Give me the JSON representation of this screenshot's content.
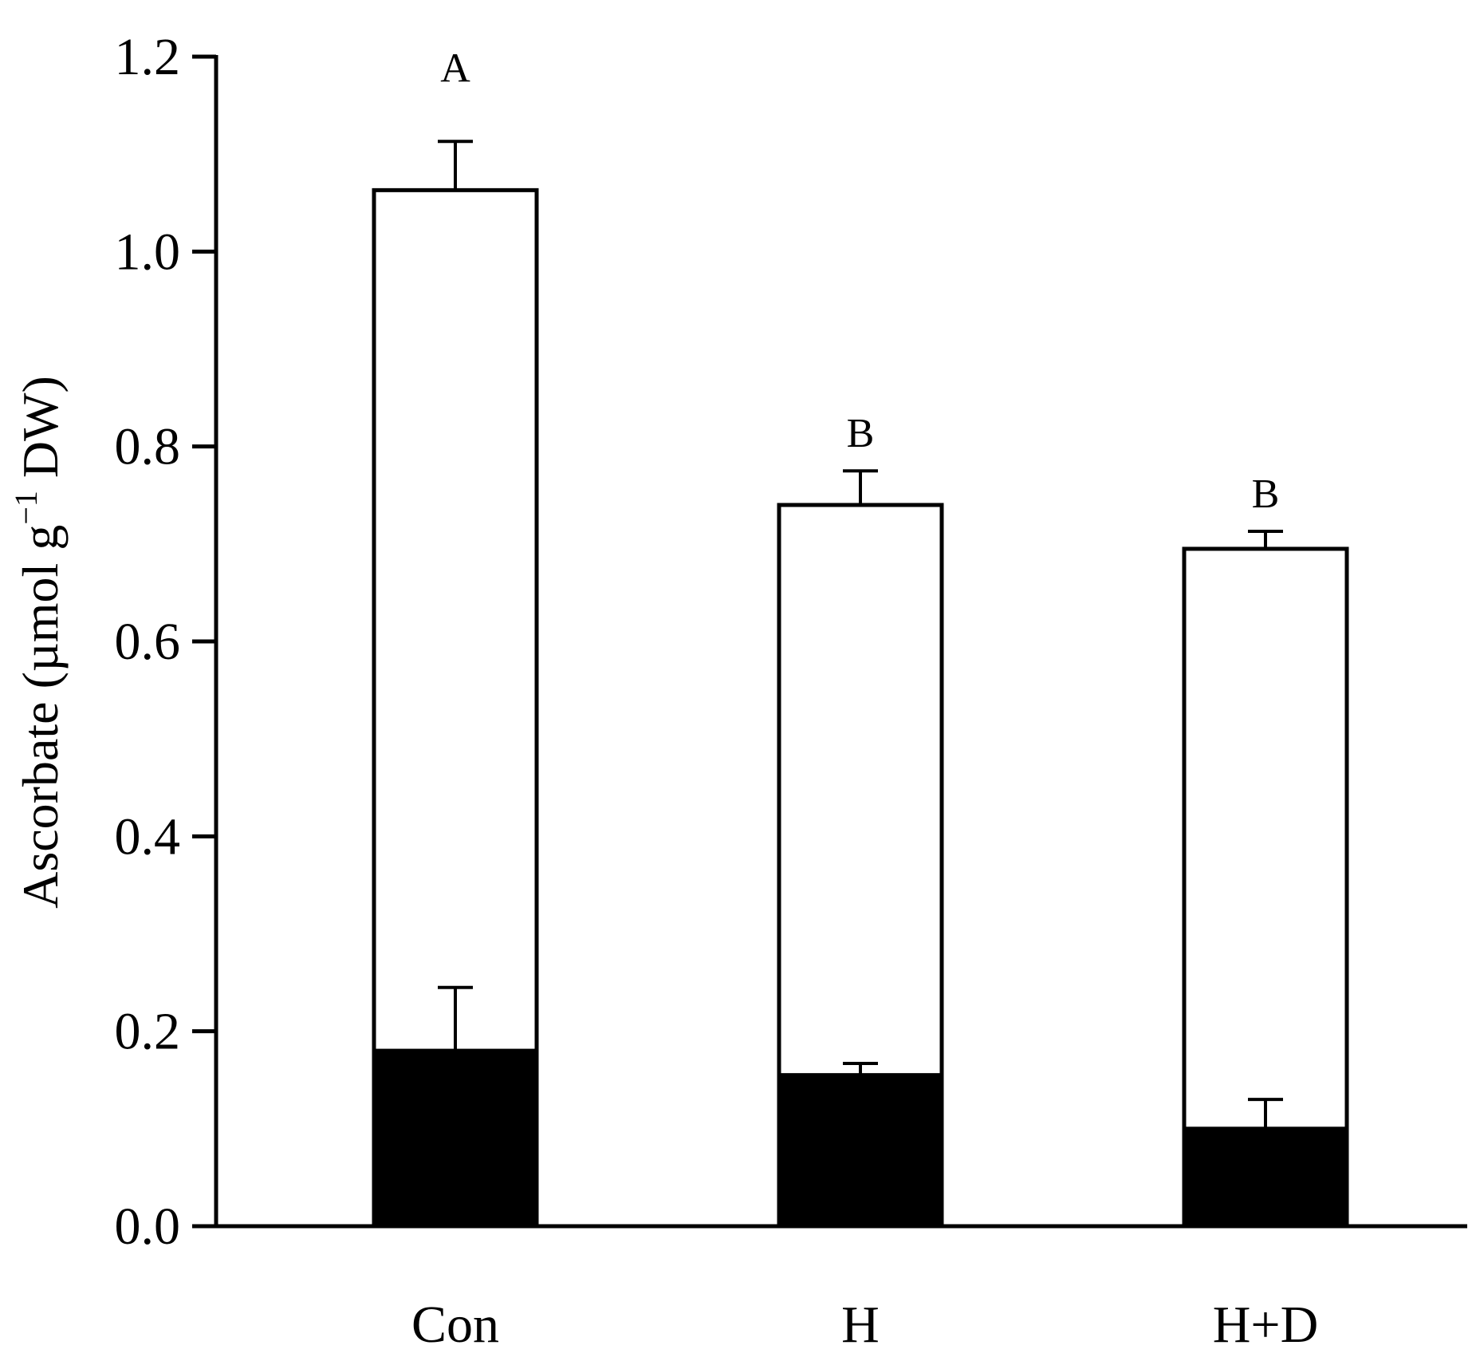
{
  "chart_data": {
    "type": "bar",
    "stacked": true,
    "title": "",
    "xlabel": "",
    "ylabel": {
      "main": "Ascorbate (µmol g",
      "superscript": "−1",
      "suffix": " DW)"
    },
    "ylim": [
      0,
      1.2
    ],
    "yticks": [
      "0.0",
      "0.2",
      "0.4",
      "0.6",
      "0.8",
      "1.0",
      "1.2"
    ],
    "ytick_values": [
      0,
      0.2,
      0.4,
      0.6,
      0.8,
      1.0,
      1.2
    ],
    "categories": [
      "Con",
      "H",
      "H+D"
    ],
    "series": [
      {
        "fill": "#000000",
        "values": [
          0.18,
          0.155,
          0.1
        ],
        "errors": [
          0.065,
          0.012,
          0.03
        ]
      },
      {
        "fill": "#ffffff",
        "values": [
          1.063,
          0.74,
          0.695
        ],
        "errors": [
          0.05,
          0.035,
          0.018
        ]
      }
    ],
    "significance_labels": [
      "A",
      "B",
      "B"
    ],
    "grid": false,
    "legend": "none"
  }
}
